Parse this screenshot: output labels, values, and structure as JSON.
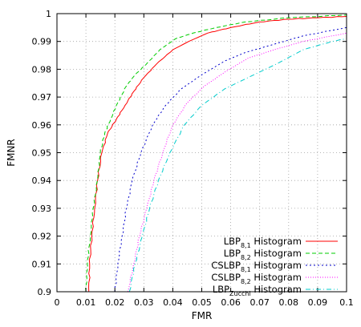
{
  "chart_data": {
    "type": "line",
    "title": "",
    "xlabel": "FMR",
    "ylabel": "FMNR",
    "xlim": [
      0,
      0.1
    ],
    "ylim": [
      0.9,
      1.0
    ],
    "xticks": [
      0,
      0.01,
      0.02,
      0.03,
      0.04,
      0.05,
      0.06,
      0.07,
      0.08,
      0.09,
      0.1
    ],
    "xtick_labels": [
      "0",
      "0.01",
      "0.02",
      "0.03",
      "0.04",
      "0.05",
      "0.06",
      "0.07",
      "0.08",
      "0.09",
      "0.1"
    ],
    "yticks": [
      0.9,
      0.91,
      0.92,
      0.93,
      0.94,
      0.95,
      0.96,
      0.97,
      0.98,
      0.99,
      1.0
    ],
    "ytick_labels": [
      "0.9",
      "0.91",
      "0.92",
      "0.93",
      "0.94",
      "0.95",
      "0.96",
      "0.97",
      "0.98",
      "0.99",
      "1"
    ],
    "grid": true,
    "legend_position": "bottom-right",
    "series": [
      {
        "name": "LBP8,1 Histogram",
        "name_base": "LBP",
        "name_sub": "8,1",
        "name_rest": " Histogram",
        "color": "#ff0000",
        "dash": "none",
        "points": [
          [
            0.011,
            0.9
          ],
          [
            0.0113,
            0.91
          ],
          [
            0.012,
            0.92
          ],
          [
            0.013,
            0.93
          ],
          [
            0.014,
            0.94
          ],
          [
            0.0155,
            0.95
          ],
          [
            0.0175,
            0.957
          ],
          [
            0.0205,
            0.962
          ],
          [
            0.0235,
            0.967
          ],
          [
            0.0265,
            0.972
          ],
          [
            0.03,
            0.977
          ],
          [
            0.0345,
            0.982
          ],
          [
            0.04,
            0.987
          ],
          [
            0.0455,
            0.99
          ],
          [
            0.052,
            0.993
          ],
          [
            0.06,
            0.995
          ],
          [
            0.07,
            0.997
          ],
          [
            0.08,
            0.998
          ],
          [
            0.09,
            0.9985
          ],
          [
            0.1,
            0.999
          ]
        ]
      },
      {
        "name": "LBP8,2 Histogram",
        "name_base": "LBP",
        "name_sub": "8,2",
        "name_rest": " Histogram",
        "color": "#00cc00",
        "dash": "5,3",
        "points": [
          [
            0.01,
            0.9
          ],
          [
            0.0105,
            0.91
          ],
          [
            0.0115,
            0.92
          ],
          [
            0.0125,
            0.93
          ],
          [
            0.014,
            0.94
          ],
          [
            0.015,
            0.95
          ],
          [
            0.0165,
            0.957
          ],
          [
            0.0185,
            0.962
          ],
          [
            0.021,
            0.968
          ],
          [
            0.024,
            0.974
          ],
          [
            0.027,
            0.978
          ],
          [
            0.031,
            0.982
          ],
          [
            0.0355,
            0.987
          ],
          [
            0.041,
            0.991
          ],
          [
            0.047,
            0.993
          ],
          [
            0.055,
            0.995
          ],
          [
            0.065,
            0.997
          ],
          [
            0.08,
            0.9985
          ],
          [
            0.1,
            0.9995
          ]
        ]
      },
      {
        "name": "CSLBP8,1 Histogram",
        "name_base": "CSLBP",
        "name_sub": "8,1",
        "name_rest": " Histogram",
        "color": "#0000cc",
        "dash": "2,3",
        "points": [
          [
            0.02,
            0.9
          ],
          [
            0.021,
            0.91
          ],
          [
            0.0225,
            0.92
          ],
          [
            0.024,
            0.93
          ],
          [
            0.026,
            0.94
          ],
          [
            0.029,
            0.95
          ],
          [
            0.033,
            0.96
          ],
          [
            0.0375,
            0.967
          ],
          [
            0.043,
            0.973
          ],
          [
            0.05,
            0.978
          ],
          [
            0.058,
            0.983
          ],
          [
            0.065,
            0.986
          ],
          [
            0.075,
            0.989
          ],
          [
            0.085,
            0.992
          ],
          [
            0.1,
            0.995
          ]
        ]
      },
      {
        "name": "CSLBP8,2 Histogram",
        "name_base": "CSLBP",
        "name_sub": "8,2",
        "name_rest": " Histogram",
        "color": "#ff00ff",
        "dash": "1,2",
        "points": [
          [
            0.0245,
            0.9
          ],
          [
            0.0265,
            0.91
          ],
          [
            0.0285,
            0.92
          ],
          [
            0.031,
            0.93
          ],
          [
            0.0335,
            0.94
          ],
          [
            0.0365,
            0.95
          ],
          [
            0.04,
            0.96
          ],
          [
            0.045,
            0.968
          ],
          [
            0.051,
            0.974
          ],
          [
            0.058,
            0.979
          ],
          [
            0.066,
            0.984
          ],
          [
            0.075,
            0.987
          ],
          [
            0.085,
            0.99
          ],
          [
            0.1,
            0.993
          ]
        ]
      },
      {
        "name": "LBPZucchi Histogram",
        "name_base": "LBP",
        "name_sub": "Zucchi",
        "name_rest": " Histogram",
        "color": "#00cccc",
        "dash": "6,3,1,3",
        "points": [
          [
            0.025,
            0.9
          ],
          [
            0.027,
            0.91
          ],
          [
            0.0295,
            0.92
          ],
          [
            0.032,
            0.93
          ],
          [
            0.035,
            0.94
          ],
          [
            0.039,
            0.95
          ],
          [
            0.044,
            0.96
          ],
          [
            0.05,
            0.967
          ],
          [
            0.058,
            0.973
          ],
          [
            0.068,
            0.978
          ],
          [
            0.076,
            0.982
          ],
          [
            0.085,
            0.987
          ],
          [
            0.095,
            0.99
          ],
          [
            0.1,
            0.991
          ]
        ]
      }
    ]
  }
}
